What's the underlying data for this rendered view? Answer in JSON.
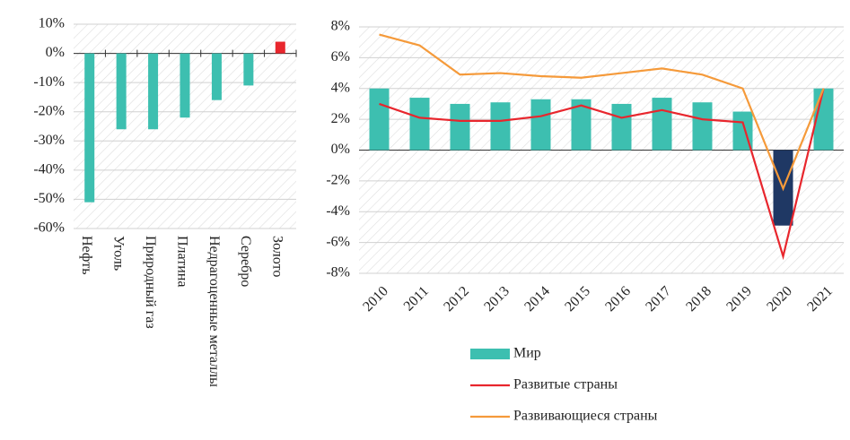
{
  "chart_data": [
    {
      "type": "bar",
      "categories": [
        "Нефть",
        "Уголь",
        "Природный газ",
        "Платина",
        "Недрагоценные металлы",
        "Серебро",
        "Золото"
      ],
      "values": [
        -51,
        -26,
        -26,
        -22,
        -16,
        -11,
        4
      ],
      "colors": [
        "#3dbfb0",
        "#3dbfb0",
        "#3dbfb0",
        "#3dbfb0",
        "#3dbfb0",
        "#3dbfb0",
        "#e8262d"
      ],
      "ylim": [
        -60,
        10
      ],
      "yticks": [
        {
          "value": -60,
          "label": "-60%"
        },
        {
          "value": -50,
          "label": "-50%"
        },
        {
          "value": -40,
          "label": "-40%"
        },
        {
          "value": -30,
          "label": "-30%"
        },
        {
          "value": -20,
          "label": "-20%"
        },
        {
          "value": -10,
          "label": "-10%"
        },
        {
          "value": 0,
          "label": "0%"
        },
        {
          "value": 10,
          "label": "10%"
        }
      ]
    },
    {
      "type": "combo",
      "categories": [
        "2010",
        "2011",
        "2012",
        "2013",
        "2014",
        "2015",
        "2016",
        "2017",
        "2018",
        "2019",
        "2020",
        "2021"
      ],
      "series": [
        {
          "name": "Мир",
          "type": "bar",
          "color": "#3dbfb0",
          "colors": [
            "#3dbfb0",
            "#3dbfb0",
            "#3dbfb0",
            "#3dbfb0",
            "#3dbfb0",
            "#3dbfb0",
            "#3dbfb0",
            "#3dbfb0",
            "#3dbfb0",
            "#3dbfb0",
            "#1f3864",
            "#3dbfb0"
          ],
          "values": [
            4.0,
            3.4,
            3.0,
            3.1,
            3.3,
            3.3,
            3.0,
            3.4,
            3.1,
            2.5,
            -4.9,
            4.0
          ]
        },
        {
          "name": "Развитые страны",
          "type": "line",
          "color": "#e8262d",
          "values": [
            3.0,
            2.1,
            1.9,
            1.9,
            2.2,
            2.9,
            2.1,
            2.6,
            2.0,
            1.8,
            -6.9,
            4.0
          ]
        },
        {
          "name": "Развивающиеся страны",
          "type": "line",
          "color": "#f59a3a",
          "values": [
            7.5,
            6.8,
            4.9,
            5.0,
            4.8,
            4.7,
            5.0,
            5.3,
            4.9,
            4.0,
            -2.5,
            4.0
          ]
        }
      ],
      "ylim": [
        -8,
        8
      ],
      "yticks": [
        {
          "value": -8,
          "label": "-8%"
        },
        {
          "value": -6,
          "label": "-6%"
        },
        {
          "value": -4,
          "label": "-4%"
        },
        {
          "value": -2,
          "label": "-2%"
        },
        {
          "value": 0,
          "label": "0%"
        },
        {
          "value": 2,
          "label": "2%"
        },
        {
          "value": 4,
          "label": "4%"
        },
        {
          "value": 6,
          "label": "6%"
        },
        {
          "value": 8,
          "label": "8%"
        }
      ]
    }
  ]
}
